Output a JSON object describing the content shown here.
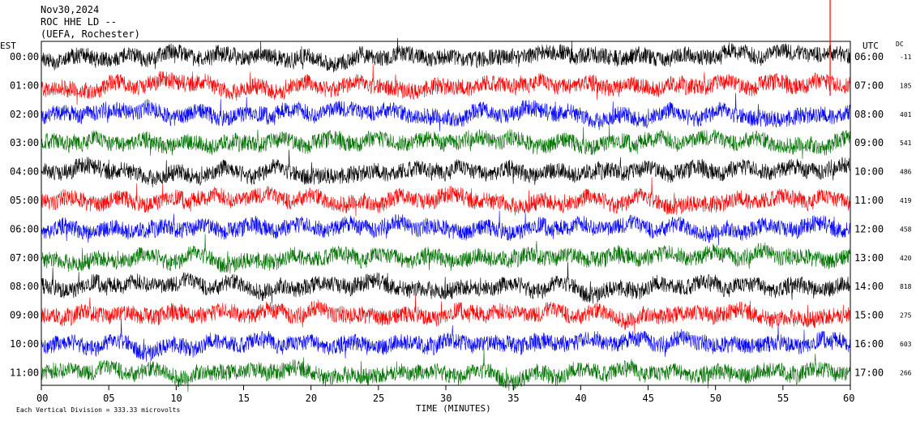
{
  "header": {
    "date": "Nov30,2024",
    "station": "ROC HHE LD --",
    "network": "(UEFA, Rochester)"
  },
  "chart_data": {
    "type": "line",
    "title": "",
    "xlabel": "TIME (MINUTES)",
    "ylabel": "",
    "left_axis_label": "EST",
    "right_axis_label": "UTC",
    "dc_label": "DC",
    "x_ticks": [
      "00",
      "05",
      "10",
      "15",
      "20",
      "25",
      "30",
      "35",
      "40",
      "45",
      "50",
      "55",
      "60"
    ],
    "xlim": [
      0,
      60
    ],
    "rows": [
      {
        "est": "00:00",
        "utc": "06:00",
        "dc": "-11",
        "color": "#000000"
      },
      {
        "est": "01:00",
        "utc": "07:00",
        "dc": "185",
        "color": "#ff0000"
      },
      {
        "est": "02:00",
        "utc": "08:00",
        "dc": "401",
        "color": "#0000ff"
      },
      {
        "est": "03:00",
        "utc": "09:00",
        "dc": "541",
        "color": "#007000"
      },
      {
        "est": "04:00",
        "utc": "10:00",
        "dc": "486",
        "color": "#000000"
      },
      {
        "est": "05:00",
        "utc": "11:00",
        "dc": "419",
        "color": "#ff0000"
      },
      {
        "est": "06:00",
        "utc": "12:00",
        "dc": "458",
        "color": "#0000ff"
      },
      {
        "est": "07:00",
        "utc": "13:00",
        "dc": "420",
        "color": "#007000"
      },
      {
        "est": "08:00",
        "utc": "14:00",
        "dc": "818",
        "color": "#000000"
      },
      {
        "est": "09:00",
        "utc": "15:00",
        "dc": "275",
        "color": "#ff0000"
      },
      {
        "est": "10:00",
        "utc": "16:00",
        "dc": "603",
        "color": "#0000ff"
      },
      {
        "est": "11:00",
        "utc": "17:00",
        "dc": "266",
        "color": "#007000"
      }
    ],
    "marker_minute": 58.5,
    "marker_color": "#ff0000",
    "grid": false,
    "footer": {
      "scale_text": "Each Vertical Division = 333.33 microvolts"
    }
  }
}
